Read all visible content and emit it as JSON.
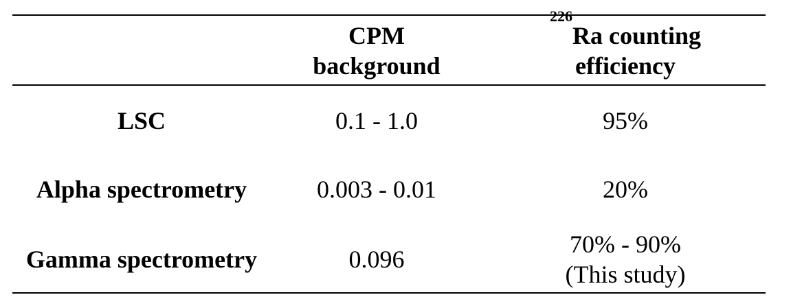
{
  "table": {
    "headers": {
      "col1": "",
      "col2": [
        "CPM",
        "background"
      ],
      "col3": {
        "superscript": "226",
        "line1": "Ra counting",
        "line2": "efficiency"
      }
    },
    "rows": [
      {
        "label": "LSC",
        "cpm": "0.1 - 1.0",
        "efficiency": [
          "95%"
        ]
      },
      {
        "label": "Alpha spectrometry",
        "cpm": "0.003 - 0.01",
        "efficiency": [
          "20%"
        ]
      },
      {
        "label": "Gamma spectrometry",
        "cpm": "0.096",
        "efficiency": [
          "70% - 90%",
          "(This study)"
        ]
      }
    ]
  }
}
